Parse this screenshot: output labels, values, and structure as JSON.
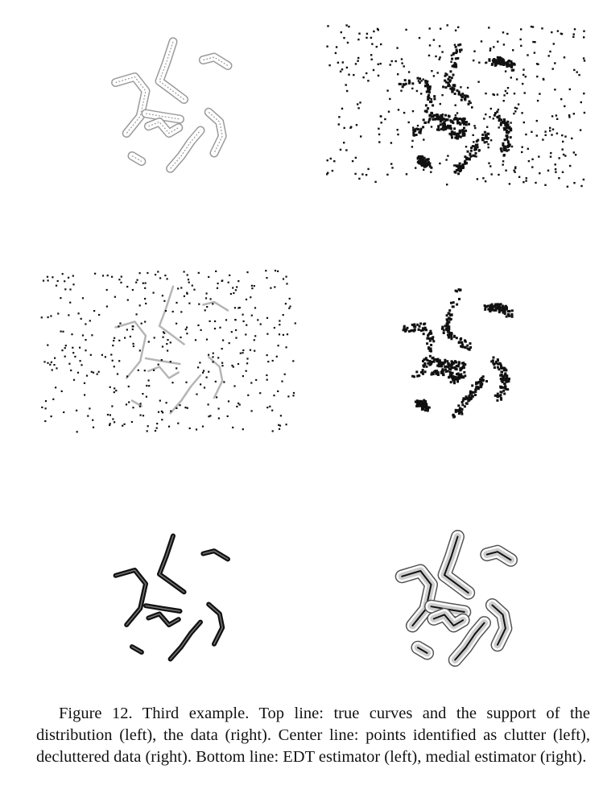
{
  "figure": {
    "caption": "Figure 12. Third example. Top line: true curves and the support of the distribution (left), the data (right). Center line: points identified as clutter (left), decluttered data (right). Bottom line: EDT estimator (left), medial estimator (right).",
    "colors": {
      "ink": "#111111",
      "support": "#9a9a9a",
      "grey_curve": "#b5b5b5",
      "shell": "#555555"
    }
  }
}
